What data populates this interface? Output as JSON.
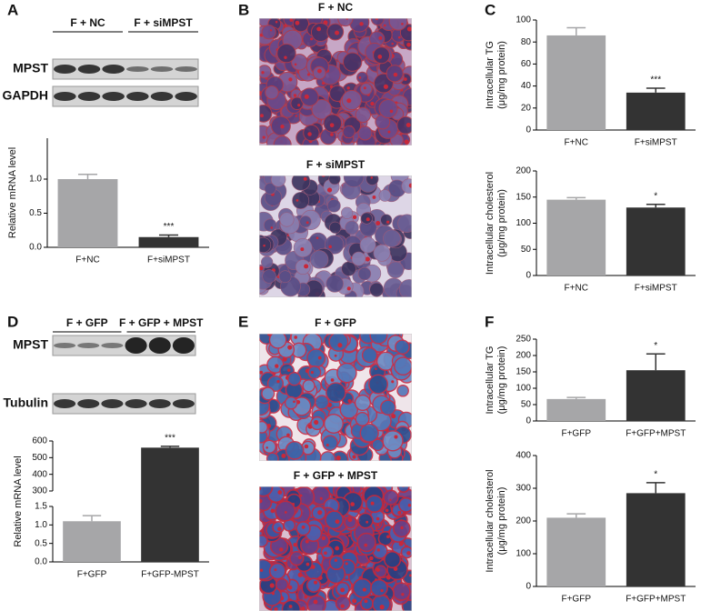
{
  "chart_data": [
    {
      "type": "bar",
      "ylabel": [
        "Relative mRNA level"
      ],
      "categories": [
        "F+NC",
        "F+siMPST"
      ],
      "values": [
        1.0,
        0.15
      ],
      "errors": [
        0.07,
        0.03
      ],
      "colors": [
        "#a6a6a8",
        "#333333"
      ],
      "significance": [
        null,
        "***"
      ],
      "ylim": [
        0,
        1.6
      ],
      "yticks": [
        {
          "value": 0,
          "label": "0.0"
        },
        {
          "value": 0.5,
          "label": "0.5"
        },
        {
          "value": 1,
          "label": "1.0"
        }
      ]
    },
    {
      "type": "bar",
      "ylabel": [
        "Intracellular TG",
        "(μg/mg protein)"
      ],
      "categories": [
        "F+NC",
        "F+siMPST"
      ],
      "values": [
        86,
        34
      ],
      "errors": [
        7,
        4
      ],
      "colors": [
        "#a6a6a8",
        "#333333"
      ],
      "significance": [
        null,
        "***"
      ],
      "ylim": [
        0,
        100
      ],
      "yticks": [
        0,
        20,
        40,
        60,
        80,
        100
      ]
    },
    {
      "type": "bar",
      "ylabel": [
        "Intracellular cholesterol",
        "(μg/mg protein)"
      ],
      "categories": [
        "F+NC",
        "F+siMPST"
      ],
      "values": [
        145,
        130
      ],
      "errors": [
        4,
        6
      ],
      "colors": [
        "#a6a6a8",
        "#333333"
      ],
      "significance": [
        null,
        "*"
      ],
      "ylim": [
        0,
        200
      ],
      "yticks": [
        0,
        50,
        100,
        150,
        200
      ]
    },
    {
      "type": "bar",
      "ylabel": [
        "Relative mRNA level"
      ],
      "categories": [
        "F+GFP",
        "F+GFP-MPST"
      ],
      "values": [
        1.1,
        560
      ],
      "errors": [
        0.15,
        8
      ],
      "colors": [
        "#a6a6a8",
        "#333333"
      ],
      "significance": [
        null,
        "***"
      ],
      "ylim": [
        0,
        600
      ],
      "y_break": [
        1.5,
        300
      ],
      "yticks": [
        {
          "value": 0,
          "label": "0.0"
        },
        {
          "value": 0.5,
          "label": "0.5"
        },
        {
          "value": 1,
          "label": "1.0"
        },
        {
          "value": 1.5,
          "label": "1.5"
        },
        300,
        400,
        500,
        600
      ]
    },
    {
      "type": "bar",
      "ylabel": [
        "Intracellular TG",
        "(μg/mg protein)"
      ],
      "categories": [
        "F+GFP",
        "F+GFP+MPST"
      ],
      "values": [
        67,
        155
      ],
      "errors": [
        5,
        50
      ],
      "colors": [
        "#a6a6a8",
        "#333333"
      ],
      "significance": [
        null,
        "*"
      ],
      "ylim": [
        0,
        250
      ],
      "yticks": [
        0,
        50,
        100,
        150,
        200,
        250
      ]
    },
    {
      "type": "bar",
      "ylabel": [
        "Intracellular cholesterol",
        "(μg/mg protein)"
      ],
      "categories": [
        "F+GFP",
        "F+GFP+MPST"
      ],
      "values": [
        210,
        285
      ],
      "errors": [
        12,
        32
      ],
      "colors": [
        "#a6a6a8",
        "#333333"
      ],
      "significance": [
        null,
        "*"
      ],
      "ylim": [
        0,
        400
      ],
      "yticks": [
        0,
        100,
        200,
        300,
        400
      ]
    }
  ],
  "panels": {
    "labels": [
      "A",
      "B",
      "C",
      "D",
      "E",
      "F"
    ],
    "blot_a": {
      "groups": [
        "F + NC",
        "F + siMPST"
      ],
      "rows": [
        "MPST",
        "GAPDH"
      ]
    },
    "blot_d": {
      "groups": [
        "F + GFP",
        "F + GFP + MPST"
      ],
      "rows": [
        "MPST",
        "Tubulin"
      ]
    },
    "images_b": [
      "F + NC",
      "F + siMPST"
    ],
    "images_e": [
      "F + GFP",
      "F + GFP + MPST"
    ]
  }
}
